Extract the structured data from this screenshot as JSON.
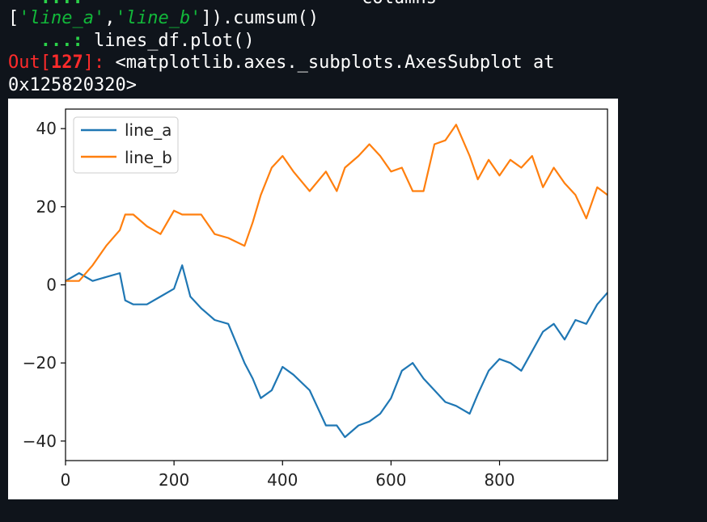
{
  "terminal": {
    "line0_prompt": "   ...:",
    "line0_rest": "                          columns =",
    "line1_open": "[",
    "line1_col_a": "'line_a'",
    "line1_comma": ",",
    "line1_col_b": "'line_b'",
    "line1_close": "]).cumsum()",
    "line2_prompt": "   ...:",
    "line2_code": " lines_df.plot()",
    "out_label": "Out[",
    "out_number": "127",
    "out_close": "]:",
    "out_text": " <matplotlib.axes._subplots.AxesSubplot at",
    "out_addr": "0x125820320>"
  },
  "colors": {
    "line_a": "#1f77b4",
    "line_b": "#ff7f0e",
    "background": "#0f141b"
  },
  "chart_data": {
    "type": "line",
    "title": "",
    "xlabel": "",
    "ylabel": "",
    "xlim": [
      0,
      999
    ],
    "ylim": [
      -45,
      45
    ],
    "xticks": [
      0,
      200,
      400,
      600,
      800
    ],
    "yticks": [
      -40,
      -20,
      0,
      20,
      40
    ],
    "grid": false,
    "legend_position": "upper-left",
    "x": [
      0,
      25,
      50,
      75,
      100,
      110,
      125,
      150,
      175,
      200,
      215,
      230,
      250,
      275,
      300,
      330,
      345,
      360,
      380,
      400,
      420,
      450,
      480,
      500,
      515,
      540,
      560,
      580,
      600,
      620,
      640,
      660,
      680,
      700,
      720,
      745,
      760,
      780,
      800,
      820,
      840,
      860,
      880,
      900,
      920,
      940,
      960,
      980,
      999
    ],
    "series": [
      {
        "name": "line_a",
        "values": [
          1,
          3,
          1,
          2,
          3,
          -4,
          -5,
          -5,
          -3,
          -1,
          5,
          -3,
          -6,
          -9,
          -10,
          -20,
          -24,
          -29,
          -27,
          -21,
          -23,
          -27,
          -36,
          -36,
          -39,
          -36,
          -35,
          -33,
          -29,
          -22,
          -20,
          -24,
          -27,
          -30,
          -31,
          -33,
          -28,
          -22,
          -19,
          -20,
          -22,
          -17,
          -12,
          -10,
          -14,
          -9,
          -10,
          -5,
          -2
        ]
      },
      {
        "name": "line_b",
        "values": [
          1,
          1,
          5,
          10,
          14,
          18,
          18,
          15,
          13,
          19,
          18,
          18,
          18,
          13,
          12,
          10,
          16,
          23,
          30,
          33,
          29,
          24,
          29,
          24,
          30,
          33,
          36,
          33,
          29,
          30,
          24,
          24,
          36,
          37,
          41,
          33,
          27,
          32,
          28,
          32,
          30,
          33,
          25,
          30,
          26,
          23,
          17,
          25,
          23
        ]
      }
    ]
  }
}
